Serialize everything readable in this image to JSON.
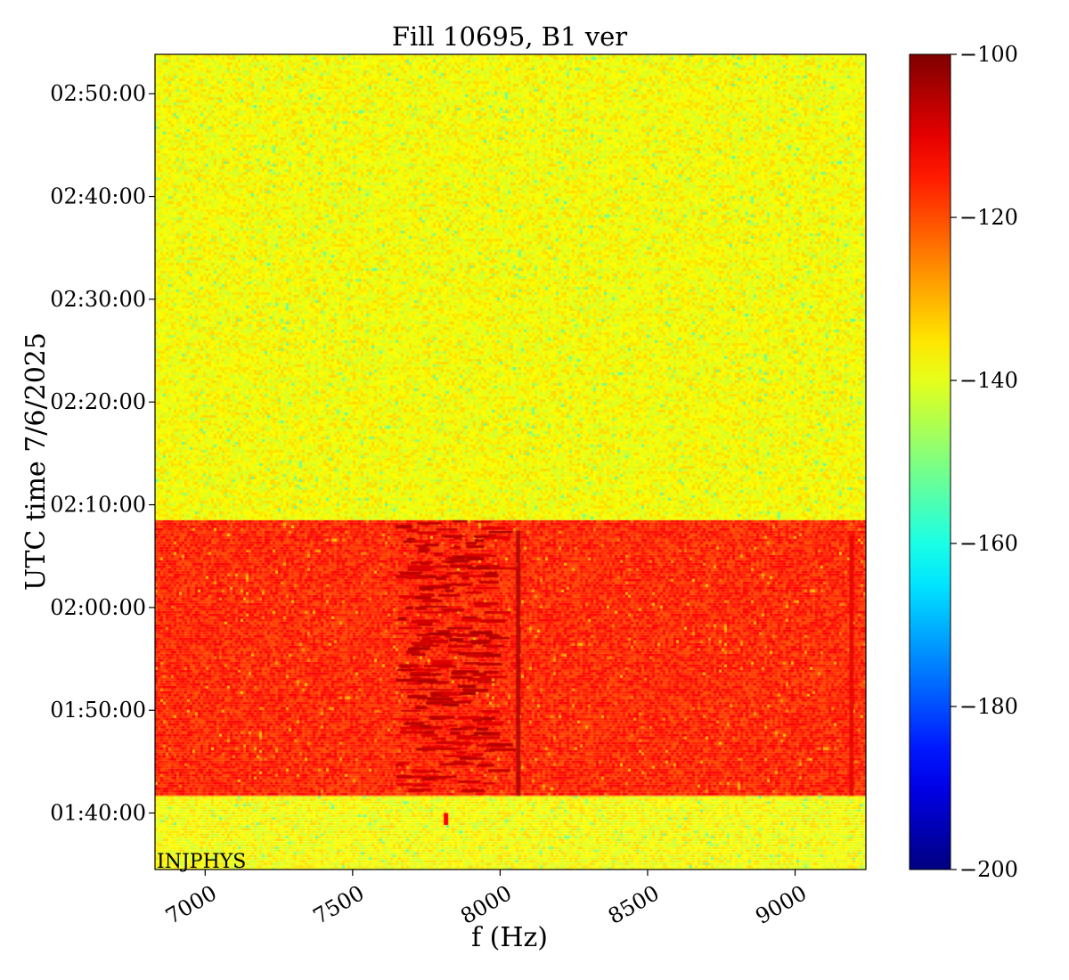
{
  "chart_data": {
    "type": "heatmap",
    "title": "Fill 10695, B1 ver",
    "xlabel": "f (Hz)",
    "ylabel": "UTC time 7/6/2025",
    "xlim": [
      6830,
      9240
    ],
    "x_ticks": [
      {
        "value": 7000,
        "label": "7000"
      },
      {
        "value": 7500,
        "label": "7500"
      },
      {
        "value": 8000,
        "label": "8000"
      },
      {
        "value": 8500,
        "label": "8500"
      },
      {
        "value": 9000,
        "label": "9000"
      }
    ],
    "ylim_utc": [
      "01:34:30",
      "02:53:50"
    ],
    "y_ticks": [
      {
        "label": "01:40:00"
      },
      {
        "label": "01:50:00"
      },
      {
        "label": "02:00:00"
      },
      {
        "label": "02:10:00"
      },
      {
        "label": "02:20:00"
      },
      {
        "label": "02:30:00"
      },
      {
        "label": "02:40:00"
      },
      {
        "label": "02:50:00"
      }
    ],
    "colormap": "jet",
    "colorbar": {
      "range": [
        -200,
        -100
      ],
      "ticks": [
        {
          "value": -100,
          "label": "−100"
        },
        {
          "value": -120,
          "label": "−120"
        },
        {
          "value": -140,
          "label": "−140"
        },
        {
          "value": -160,
          "label": "−160"
        },
        {
          "value": -180,
          "label": "−180"
        },
        {
          "value": -200,
          "label": "−200"
        }
      ]
    },
    "regions": [
      {
        "from_utc": "01:34:30",
        "to_utc": "01:41:40",
        "typical_level": -138
      },
      {
        "from_utc": "01:41:40",
        "to_utc": "02:08:30",
        "typical_level": -116
      },
      {
        "from_utc": "02:08:30",
        "to_utc": "02:53:50",
        "typical_level": -138
      }
    ],
    "features": [
      {
        "kind": "line",
        "x": 8060,
        "from_utc": "01:41:40",
        "to_utc": "02:07:30",
        "level": -104
      },
      {
        "kind": "line",
        "x": 9190,
        "from_utc": "01:41:40",
        "to_utc": "02:07:00",
        "level": -110
      },
      {
        "kind": "burst-band",
        "x_from": 7640,
        "x_to": 7970,
        "from_utc": "01:42:00",
        "to_utc": "02:08:30",
        "level": -104
      },
      {
        "kind": "spot",
        "x": 7815,
        "from_utc": "01:38:50",
        "to_utc": "01:40:00",
        "level": -112
      }
    ],
    "annotation": "INJPHYS",
    "grid": false
  }
}
